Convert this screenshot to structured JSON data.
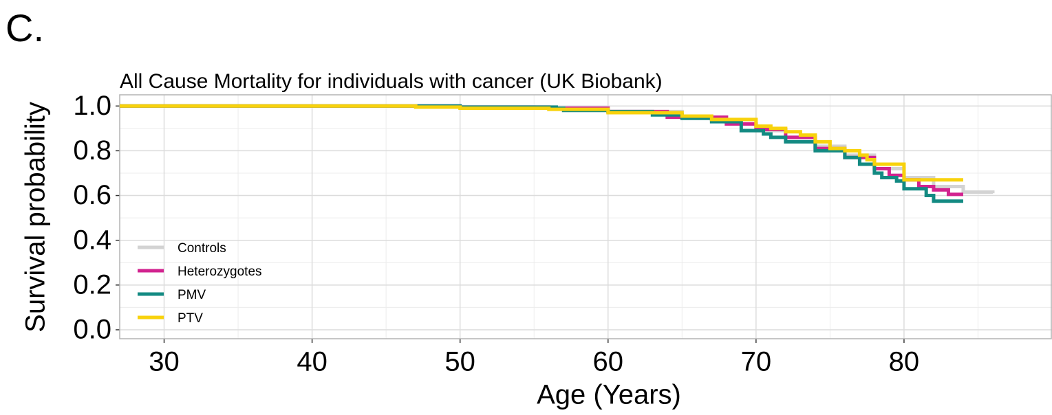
{
  "chart_data": {
    "type": "step",
    "panel_label": "C.",
    "title": "All Cause Mortality for individuals with cancer (UK Biobank)",
    "x_label": "Age (Years)",
    "y_label": "Survival probability",
    "xlim": [
      27,
      90
    ],
    "xticks": [
      30,
      40,
      50,
      60,
      70,
      80
    ],
    "x_minor_ticks": [
      35,
      45,
      55,
      65,
      75,
      85
    ],
    "ylim": [
      -0.04,
      1.05
    ],
    "yticks": [
      {
        "value": 0,
        "label": "0.0"
      },
      {
        "value": 0.2,
        "label": "0.2"
      },
      {
        "value": 0.4,
        "label": "0.4"
      },
      {
        "value": 0.6,
        "label": "0.6"
      },
      {
        "value": 0.8,
        "label": "0.8"
      },
      {
        "value": 1,
        "label": "1.0"
      }
    ],
    "y_minor_ticks": [
      0.1,
      0.3,
      0.5,
      0.7,
      0.9
    ],
    "grid": true,
    "legend": "bottom-left",
    "series": [
      {
        "name": "Controls",
        "color": "#d3d3d3",
        "x": [
          27,
          45,
          50,
          55,
          60,
          65,
          68,
          70,
          72,
          74,
          76,
          78,
          80,
          82,
          84,
          86
        ],
        "values": [
          1.0,
          1.0,
          0.995,
          0.99,
          0.975,
          0.95,
          0.92,
          0.89,
          0.86,
          0.82,
          0.78,
          0.72,
          0.68,
          0.64,
          0.615,
          0.61
        ]
      },
      {
        "name": "Heterozygotes",
        "color": "#d2238f",
        "x": [
          27,
          50,
          56,
          60,
          64,
          68,
          70,
          72,
          74,
          76,
          78,
          79,
          80,
          81,
          82,
          83,
          84
        ],
        "values": [
          1.0,
          0.995,
          0.99,
          0.975,
          0.95,
          0.92,
          0.895,
          0.86,
          0.81,
          0.77,
          0.72,
          0.69,
          0.67,
          0.64,
          0.625,
          0.605,
          0.605
        ]
      },
      {
        "name": "PMV",
        "color": "#138a82",
        "x": [
          27,
          50,
          56.5,
          57,
          60,
          63,
          65,
          67,
          69,
          70.5,
          71,
          72,
          74,
          76,
          77,
          78,
          78.5,
          79.5,
          80,
          81.5,
          82,
          84
        ],
        "values": [
          1.0,
          0.995,
          0.99,
          0.98,
          0.975,
          0.96,
          0.945,
          0.93,
          0.89,
          0.875,
          0.86,
          0.84,
          0.8,
          0.77,
          0.74,
          0.7,
          0.68,
          0.665,
          0.63,
          0.6,
          0.575,
          0.575
        ]
      },
      {
        "name": "PTV",
        "color": "#f8d20c",
        "x": [
          27,
          47,
          50,
          56,
          60,
          65,
          67,
          70,
          71,
          72,
          73,
          74,
          75,
          76,
          77,
          77.5,
          78,
          79.9,
          80,
          84
        ],
        "values": [
          1.0,
          0.995,
          0.99,
          0.985,
          0.97,
          0.955,
          0.94,
          0.91,
          0.9,
          0.885,
          0.87,
          0.84,
          0.81,
          0.8,
          0.78,
          0.76,
          0.74,
          0.74,
          0.67,
          0.67
        ]
      }
    ]
  }
}
